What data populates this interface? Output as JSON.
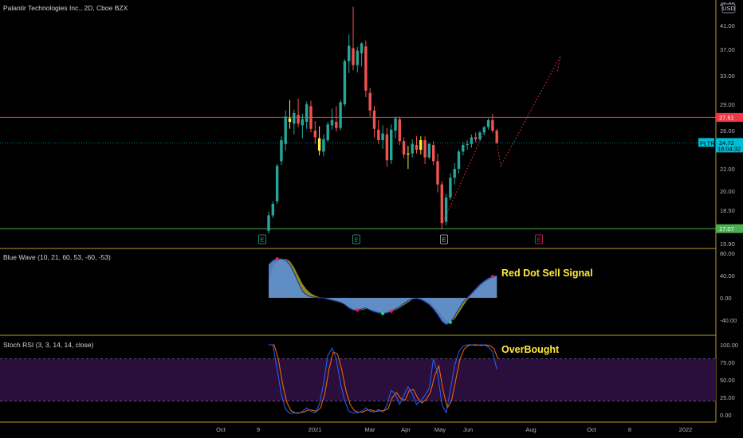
{
  "header": {
    "title": "Palantir Technologies Inc., 2D, Cboe BZX",
    "currency": "USD"
  },
  "colors": {
    "background": "#000000",
    "up": "#26a69a",
    "down": "#ef5350",
    "highlight": "#ffeb3b",
    "resistance": "#f23645",
    "support": "#4caf50",
    "current": "#00bcd4",
    "wave_fill": "#5b8fd6",
    "wave_line": "#1e3a8a",
    "wave_signal": "#c4b72b",
    "rsi_k": "#2962ff",
    "rsi_d": "#ff6d00",
    "rsi_band": "#2a0f3c",
    "separator": "#b89a2a"
  },
  "chart_data": [
    {
      "name": "price",
      "type": "candlestick",
      "title": "Palantir Technologies Inc., 2D, Cboe BZX",
      "ylim": [
        15.9,
        45.0
      ],
      "y_ticks": [
        "45.00",
        "41.00",
        "37.00",
        "33.00",
        "29.00",
        "26.00",
        "22.00",
        "20.00",
        "18.50",
        "15.90"
      ],
      "x_ticks": [
        "Oct",
        "9",
        "2021",
        "Mar",
        "Apr",
        "May",
        "Jun",
        "Aug",
        "Oct",
        "8",
        "2022"
      ],
      "candles": [
        [
          16.9,
          18.4,
          16.7,
          18.1
        ],
        [
          18.1,
          19.2,
          17.9,
          19.0
        ],
        [
          19.2,
          22.5,
          19.0,
          22.3
        ],
        [
          22.8,
          25.4,
          22.4,
          25.0
        ],
        [
          24.6,
          28.3,
          23.9,
          27.6
        ],
        [
          27.4,
          29.6,
          26.2,
          27.0
        ],
        [
          26.8,
          28.4,
          25.6,
          28.0
        ],
        [
          27.8,
          29.8,
          26.4,
          26.8
        ],
        [
          26.6,
          27.9,
          25.2,
          27.3
        ],
        [
          27.0,
          29.4,
          26.2,
          29.0
        ],
        [
          28.8,
          29.5,
          25.8,
          26.2
        ],
        [
          26.0,
          27.1,
          24.6,
          25.3
        ],
        [
          25.2,
          26.5,
          23.4,
          23.9
        ],
        [
          23.8,
          25.6,
          23.3,
          25.1
        ],
        [
          25.0,
          27.0,
          24.8,
          26.7
        ],
        [
          26.6,
          28.5,
          26.1,
          27.2
        ],
        [
          27.0,
          28.8,
          25.9,
          26.3
        ],
        [
          26.3,
          29.6,
          26.0,
          29.3
        ],
        [
          29.0,
          35.5,
          28.8,
          35.2
        ],
        [
          35.2,
          39.5,
          33.4,
          37.6
        ],
        [
          37.2,
          44.5,
          33.8,
          34.6
        ],
        [
          34.6,
          37.4,
          33.5,
          36.8
        ],
        [
          36.4,
          38.2,
          34.4,
          38.0
        ],
        [
          37.5,
          38.5,
          30.0,
          30.9
        ],
        [
          30.6,
          31.3,
          27.6,
          28.3
        ],
        [
          28.3,
          28.8,
          25.3,
          26.2
        ],
        [
          26.1,
          27.2,
          24.6,
          25.0
        ],
        [
          25.0,
          26.6,
          24.1,
          25.7
        ],
        [
          25.6,
          26.3,
          22.2,
          22.9
        ],
        [
          22.9,
          26.7,
          22.5,
          26.1
        ],
        [
          26.0,
          27.6,
          25.2,
          27.4
        ],
        [
          27.3,
          27.6,
          24.5,
          24.9
        ],
        [
          24.9,
          25.3,
          23.1,
          23.5
        ],
        [
          23.5,
          24.4,
          22.0,
          23.6
        ],
        [
          23.6,
          25.1,
          23.2,
          24.6
        ],
        [
          24.5,
          25.4,
          23.6,
          24.0
        ],
        [
          24.0,
          25.4,
          23.5,
          25.0
        ],
        [
          25.0,
          25.4,
          22.5,
          23.2
        ],
        [
          23.2,
          24.7,
          23.0,
          24.6
        ],
        [
          24.5,
          24.9,
          22.4,
          22.8
        ],
        [
          22.8,
          23.6,
          19.9,
          20.6
        ],
        [
          20.6,
          20.9,
          17.0,
          17.5
        ],
        [
          17.6,
          19.8,
          17.3,
          19.5
        ],
        [
          19.5,
          21.6,
          19.3,
          21.2
        ],
        [
          21.2,
          22.6,
          20.6,
          22.0
        ],
        [
          22.0,
          24.0,
          21.6,
          23.8
        ],
        [
          23.8,
          24.8,
          23.4,
          24.5
        ],
        [
          24.5,
          25.0,
          24.0,
          24.6
        ],
        [
          24.6,
          25.6,
          24.2,
          25.3
        ],
        [
          25.3,
          25.8,
          24.8,
          25.1
        ],
        [
          25.1,
          26.0,
          24.9,
          25.8
        ],
        [
          25.8,
          26.5,
          25.5,
          26.4
        ],
        [
          26.4,
          27.4,
          26.1,
          27.2
        ],
        [
          27.2,
          27.9,
          25.8,
          26.0
        ],
        [
          26.0,
          26.2,
          24.6,
          24.72
        ]
      ],
      "levels": [
        {
          "label": "27.51",
          "value": 27.51,
          "color": "#f23645"
        },
        {
          "label": "24.72",
          "value": 24.72,
          "color": "#00bcd4"
        },
        {
          "label": "17.07",
          "value": 17.07,
          "color": "#4caf50"
        }
      ],
      "ticker": {
        "symbol": "PLTR",
        "price": "24.72",
        "countdown": "18:04:32"
      },
      "projection": [
        [
          24.72,
          22.3
        ],
        [
          36.0,
          33.5
        ]
      ],
      "earnings_markers": [
        "E",
        "E",
        "E",
        "E"
      ]
    },
    {
      "name": "blue-wave",
      "type": "area",
      "title": "Blue Wave (10, 21, 60, 53, -60, -53)",
      "ylim": [
        -55,
        85
      ],
      "y_ticks": [
        "80.00",
        "40.00",
        "0.00",
        "-40.00"
      ],
      "wave": [
        60,
        67,
        70,
        70,
        68,
        60,
        45,
        28,
        12,
        5,
        2,
        1,
        0,
        0,
        -2,
        -4,
        -6,
        -8,
        -12,
        -18,
        -22,
        -22,
        -20,
        -18,
        -22,
        -25,
        -27,
        -28,
        -27,
        -24,
        -20,
        -16,
        -10,
        -5,
        -2,
        -1,
        -3,
        -7,
        -12,
        -20,
        -30,
        -42,
        -48,
        -44,
        -33,
        -20,
        -8,
        0,
        8,
        16,
        24,
        30,
        35,
        38,
        40
      ],
      "signal": [
        30,
        55,
        65,
        70,
        70,
        66,
        55,
        40,
        25,
        15,
        8,
        4,
        1,
        -1,
        -3,
        -5,
        -7,
        -9,
        -12,
        -16,
        -20,
        -22,
        -22,
        -20,
        -20,
        -22,
        -25,
        -26,
        -26,
        -25,
        -22,
        -18,
        -13,
        -8,
        -3,
        0,
        0,
        -3,
        -8,
        -14,
        -22,
        -32,
        -40,
        -43,
        -38,
        -27,
        -15,
        -4,
        4,
        12,
        20,
        26,
        31,
        35,
        38
      ],
      "red_dots": [
        2,
        21,
        27,
        29,
        53
      ],
      "green_dots": [
        27,
        43
      ],
      "annotation": "Red Dot Sell Signal"
    },
    {
      "name": "stoch-rsi",
      "type": "line",
      "title": "Stoch RSI (3, 3, 14, 14, close)",
      "ylim": [
        -8,
        108
      ],
      "y_ticks": [
        "100.00",
        "75.00",
        "50.00",
        "25.00",
        "0.00"
      ],
      "bands": [
        80,
        20
      ],
      "k": [
        100,
        100,
        65,
        30,
        8,
        2,
        3,
        2,
        5,
        10,
        5,
        3,
        15,
        45,
        85,
        95,
        80,
        45,
        20,
        5,
        3,
        3,
        5,
        10,
        5,
        4,
        8,
        4,
        14,
        35,
        30,
        15,
        28,
        40,
        30,
        15,
        20,
        28,
        38,
        80,
        60,
        15,
        3,
        35,
        70,
        90,
        98,
        100,
        100,
        99,
        100,
        100,
        97,
        90,
        65
      ],
      "d": [
        100,
        100,
        80,
        45,
        18,
        6,
        3,
        3,
        4,
        7,
        7,
        5,
        10,
        30,
        65,
        90,
        87,
        65,
        35,
        15,
        6,
        4,
        4,
        7,
        7,
        5,
        6,
        6,
        9,
        25,
        32,
        23,
        21,
        35,
        36,
        24,
        17,
        22,
        32,
        55,
        70,
        35,
        10,
        20,
        50,
        80,
        94,
        99,
        100,
        100,
        99,
        100,
        99,
        95,
        80
      ],
      "annotation": "OverBought"
    }
  ]
}
